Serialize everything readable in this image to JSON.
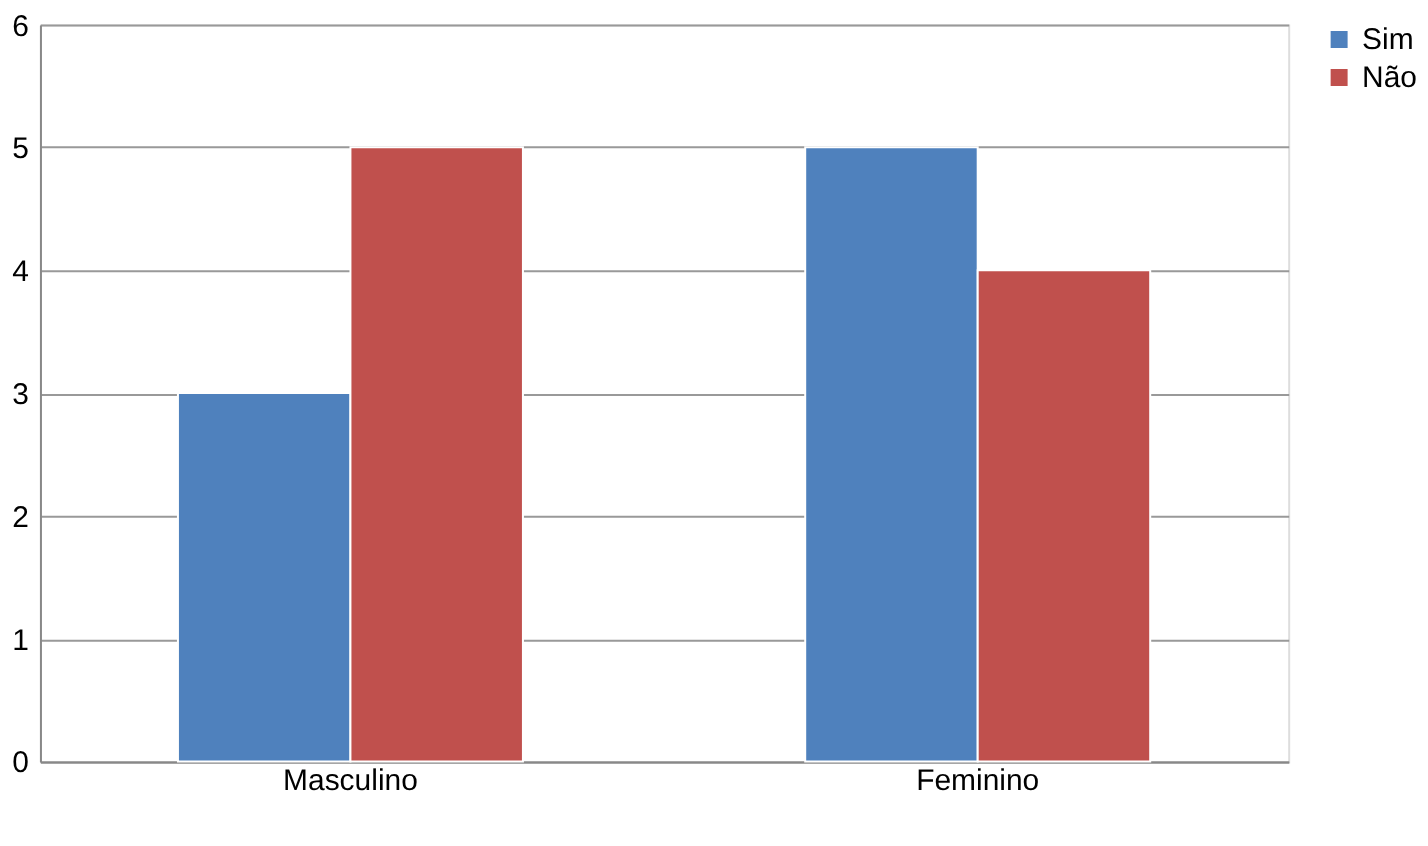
{
  "chart_data": {
    "type": "bar",
    "categories": [
      "Masculino",
      "Feminino"
    ],
    "series": [
      {
        "name": "Sim",
        "color": "#4f81bd",
        "values": [
          3,
          5
        ]
      },
      {
        "name": "Não",
        "color": "#c0504d",
        "values": [
          5,
          4
        ]
      }
    ],
    "ylim": [
      0,
      6
    ],
    "yticks": [
      0,
      1,
      2,
      3,
      4,
      5,
      6
    ],
    "grid": "y",
    "legend": "right"
  }
}
